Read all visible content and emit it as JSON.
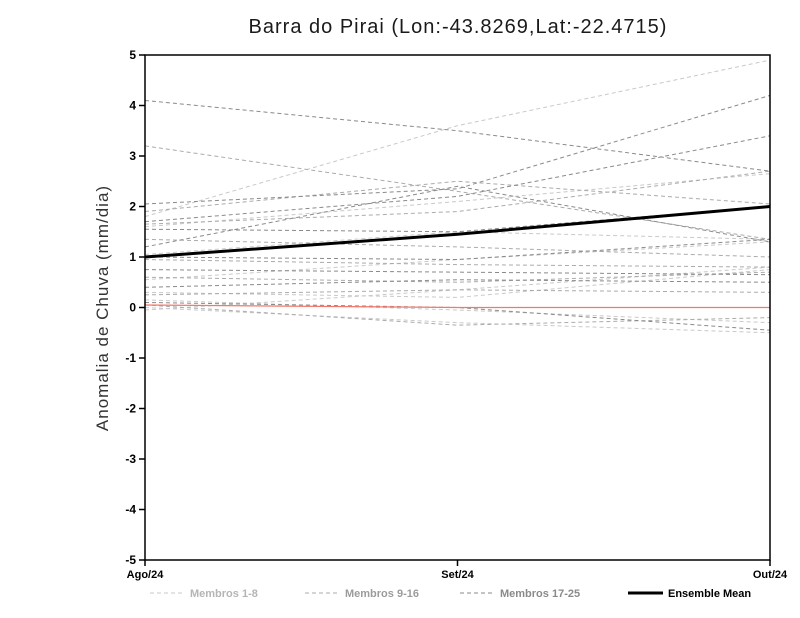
{
  "title": "Barra do Pirai (Lon:-43.8269,Lat:-22.4715)",
  "y_axis_label": "Anomalia de Chuva (mm/dia)",
  "chart_data": {
    "type": "line",
    "x_categories": [
      "Ago/24",
      "Set/24",
      "Out/24"
    ],
    "ylim": [
      -5,
      5
    ],
    "y_ticks": [
      5,
      4,
      3,
      2,
      1,
      0,
      -1,
      -2,
      -3,
      -4,
      -5
    ],
    "grid": "off",
    "legend_position": "bottom",
    "groups": [
      {
        "name": "Membros 1-8",
        "color": "#c9c9c9",
        "style": "dashed",
        "members": [
          [
            1.8,
            3.6,
            4.9
          ],
          [
            1.6,
            2.1,
            2.65
          ],
          [
            1.05,
            1.5,
            1.35
          ],
          [
            0.55,
            0.95,
            1.3
          ],
          [
            0.3,
            0.2,
            0.75
          ],
          [
            0.15,
            -0.05,
            -0.3
          ],
          [
            0.0,
            -0.3,
            -0.5
          ],
          [
            -0.05,
            0.35,
            0.8
          ]
        ]
      },
      {
        "name": "Membros 9-16",
        "color": "#ababab",
        "style": "dashed",
        "members": [
          [
            3.2,
            2.3,
            1.35
          ],
          [
            1.9,
            2.5,
            2.05
          ],
          [
            1.65,
            1.9,
            2.7
          ],
          [
            1.35,
            1.2,
            1.0
          ],
          [
            0.95,
            0.85,
            0.8
          ],
          [
            0.6,
            0.5,
            0.7
          ],
          [
            0.25,
            0.35,
            0.3
          ],
          [
            0.05,
            -0.35,
            -0.2
          ]
        ]
      },
      {
        "name": "Membros 17-25",
        "color": "#8a8a8a",
        "style": "dashed",
        "members": [
          [
            4.1,
            3.5,
            2.7
          ],
          [
            2.05,
            2.35,
            4.2
          ],
          [
            1.7,
            2.2,
            3.4
          ],
          [
            1.55,
            1.5,
            2.0
          ],
          [
            1.2,
            2.4,
            1.3
          ],
          [
            1.0,
            0.95,
            1.35
          ],
          [
            0.75,
            0.7,
            0.65
          ],
          [
            0.4,
            0.55,
            0.5
          ],
          [
            0.1,
            0.0,
            -0.45
          ]
        ]
      }
    ],
    "ensemble_mean": {
      "name": "Ensemble Mean",
      "color": "#000000",
      "style": "solid",
      "values": [
        1.0,
        1.45,
        2.0
      ]
    },
    "red_line": {
      "color": "#f4776a",
      "style": "solid",
      "values": [
        0.05,
        0.0,
        0.0
      ]
    },
    "legend": [
      {
        "label": "Membros 1-8",
        "color": "#c9c9c9",
        "style": "dashed"
      },
      {
        "label": "Membros 9-16",
        "color": "#ababab",
        "style": "dashed"
      },
      {
        "label": "Membros 17-25",
        "color": "#8a8a8a",
        "style": "dashed"
      },
      {
        "label": "Ensemble Mean",
        "color": "#000000",
        "style": "solid"
      }
    ]
  }
}
